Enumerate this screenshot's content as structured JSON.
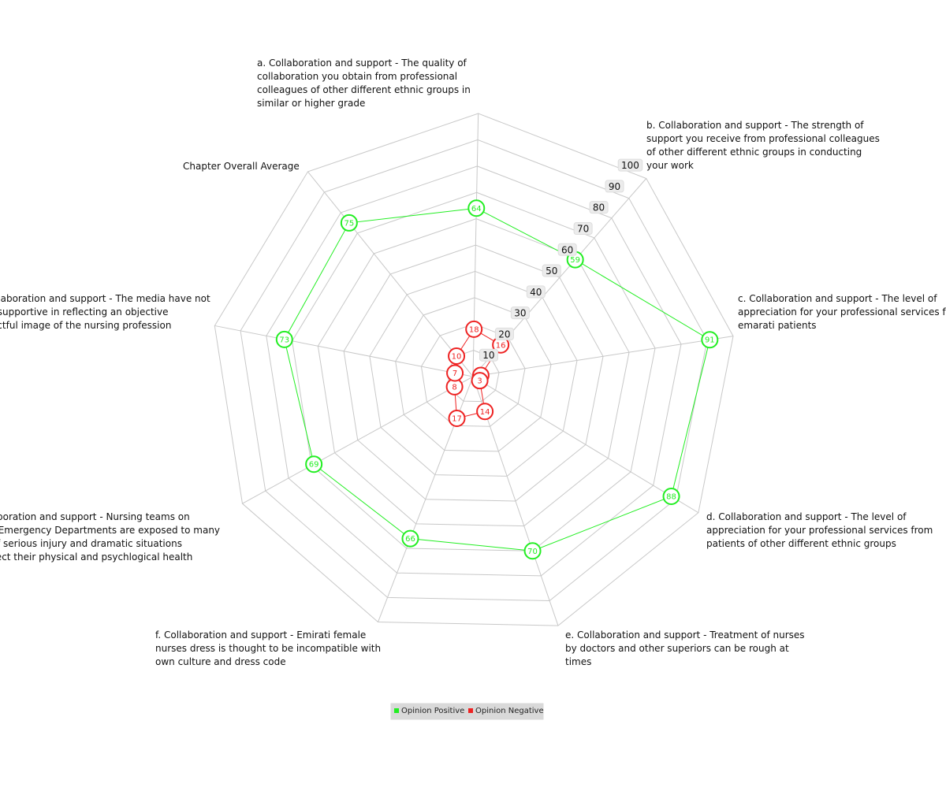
{
  "chart_data": {
    "type": "radar",
    "axes": [
      [
        "a. Collaboration and support - The quality of",
        "collaboration you obtain from professional",
        "colleagues of other different ethnic groups in",
        "similar or higher grade"
      ],
      [
        "b. Collaboration and support - The strength of",
        "support you receive from professional colleagues",
        "of other different ethnic groups in conducting",
        "your work"
      ],
      [
        "c. Collaboration and support - The level of",
        "appreciation for your professional services from",
        "emarati patients"
      ],
      [
        "d. Collaboration and support - The level of",
        "appreciation for your professional services from",
        "patients of other different ethnic groups"
      ],
      [
        "e. Collaboration and support - Treatment of nurses",
        "by doctors and other superiors can be rough at",
        "times"
      ],
      [
        "f. Collaboration and support - Emirati female",
        "nurses dress is thought to be incompatible with",
        "own culture and dress code"
      ],
      [
        "g. Collaboration and support - Nursing teams on",
        "duty at Emergency Departments are exposed to many",
        "cases of serious injury and dramatic situations",
        "that affect their physical and psychlogical health"
      ],
      [
        "h. Collaboration and support - The media have not",
        "been supportive in reflecting an objective",
        "respectful image of the nursing profession"
      ],
      [
        "Chapter Overall Average"
      ]
    ],
    "series": [
      {
        "name": "Opinion Positive",
        "color": "#22ee22",
        "values": [
          64,
          59,
          91,
          88,
          70,
          66,
          69,
          73,
          75
        ]
      },
      {
        "name": "Opinion Negative",
        "color": "#ee2222",
        "values": [
          18,
          16,
          3,
          3,
          14,
          17,
          8,
          7,
          10
        ]
      }
    ],
    "rmin": 0,
    "rmax": 100,
    "ticks": [
      10,
      20,
      30,
      40,
      50,
      60,
      70,
      80,
      90,
      100
    ],
    "grid": true,
    "legend_position": "bottom-center"
  }
}
